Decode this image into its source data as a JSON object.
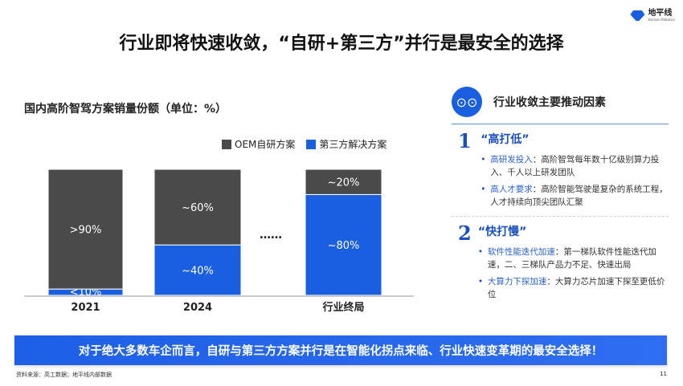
{
  "title": "行业即将快速收敛，“自研+第三方”并行是最安全的选择",
  "logo": {
    "name": "地平线",
    "sub": "Horizon Robotics"
  },
  "chart_data": {
    "type": "bar",
    "stacked": true,
    "title": "国内高阶智驾方案销量份额（单位：%）",
    "categories": [
      "2021",
      "2024",
      "行业终局"
    ],
    "series": [
      {
        "name": "OEM自研方案",
        "color": "#4a4a4a",
        "values": [
          95,
          60,
          20
        ],
        "labels": [
          ">90%",
          "~60%",
          "~20%"
        ]
      },
      {
        "name": "第三方解决方案",
        "color": "#1a5fe0",
        "values": [
          5,
          40,
          80
        ],
        "labels": [
          "<10%",
          "~40%",
          "~80%"
        ]
      }
    ],
    "ylim": [
      0,
      100
    ],
    "legend": "top-right",
    "gap_marker": "……"
  },
  "right": {
    "icon": "binoculars-icon",
    "heading": "行业收敛主要推动因素",
    "sections": [
      {
        "num": "1",
        "title": "“高打低”",
        "bullets": [
          {
            "key": "高研发投入",
            "text": "：高阶智驾每年数十亿级别算力投入、千人以上研发团队"
          },
          {
            "key": "高人才要求",
            "text": "：高阶智能驾驶是复杂的系统工程，人才持续向顶尖团队汇聚"
          }
        ]
      },
      {
        "num": "2",
        "title": "“快打慢”",
        "bullets": [
          {
            "key": "软件性能迭代加速",
            "text": "：第一梯队软件性能迭代加速，二、三梯队产品力不足、快速出局"
          },
          {
            "key": "大算力下探加速",
            "text": "：大算力芯片加速下探至更低价位"
          }
        ]
      }
    ]
  },
  "banner": "对于绝大多数车企而言，自研与第三方方案并行是在智能化拐点来临、行业快速变革期的最安全选择！",
  "footer": "资料来源：高工数据；地平线内部数据",
  "page": "11"
}
